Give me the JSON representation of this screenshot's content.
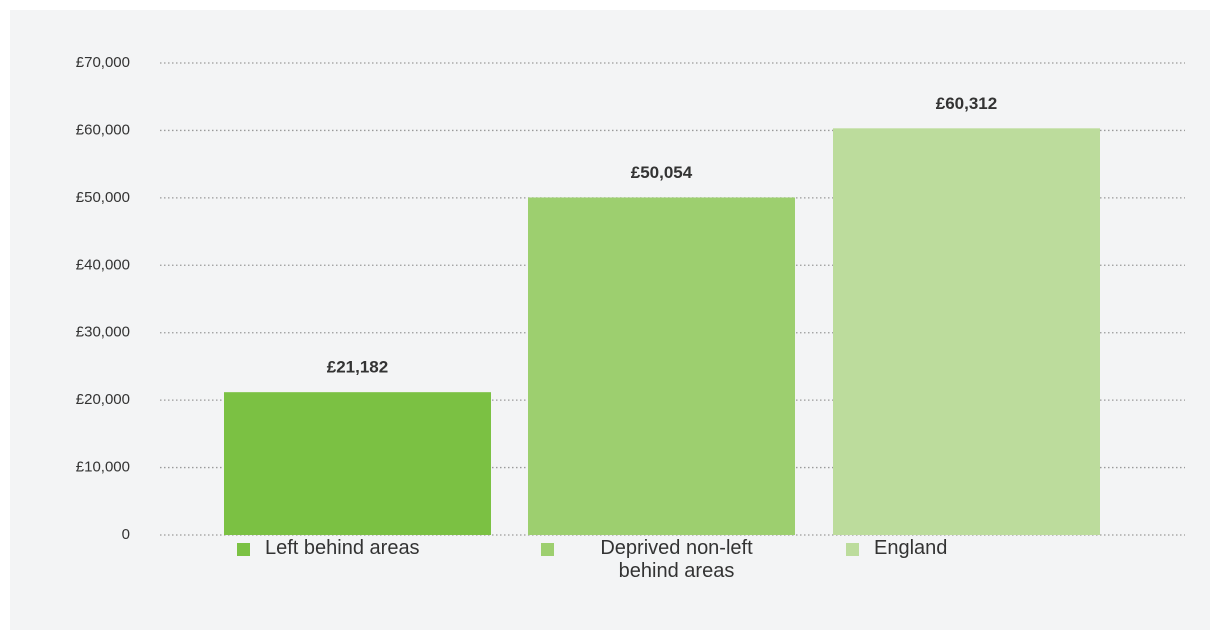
{
  "chart_data": {
    "type": "bar",
    "categories": [
      "Left behind areas",
      "Deprived non-left behind areas",
      "England"
    ],
    "values": [
      21182,
      50054,
      60312
    ],
    "value_labels": [
      "£21,182",
      "£50,054",
      "£60,312"
    ],
    "colors": [
      "#7bc143",
      "#9dcf6f",
      "#bcdc9c"
    ],
    "ylim": [
      0,
      70000
    ],
    "yticks": [
      0,
      {
        "value": 10000,
        "label": "£10,000"
      },
      {
        "value": 20000,
        "label": "£20,000"
      },
      {
        "value": 30000,
        "label": "£30,000"
      },
      {
        "value": 40000,
        "label": "£40,000"
      },
      {
        "value": 50000,
        "label": "£50,000"
      },
      {
        "value": 60000,
        "label": "£60,000"
      },
      {
        "value": 70000,
        "label": "£70,000"
      }
    ],
    "grid": true
  }
}
